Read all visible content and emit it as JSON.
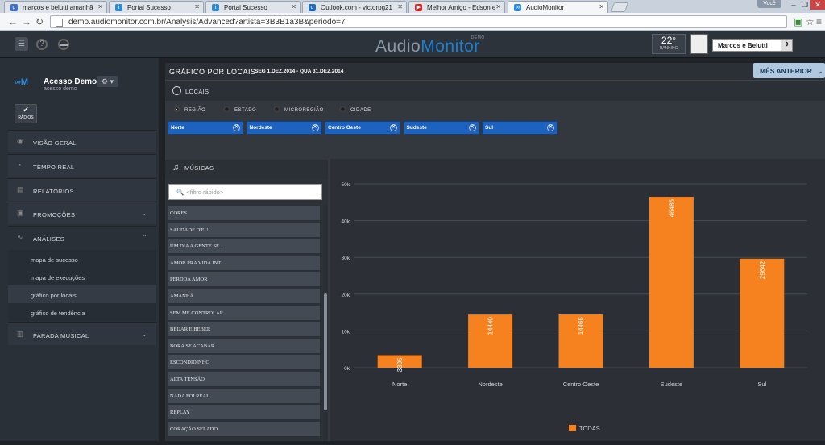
{
  "browser": {
    "tabs": [
      {
        "label": "marcos e belutti amanhã",
        "icon": "google-favicon",
        "color": "#3a6fd8",
        "glyph": "g"
      },
      {
        "label": "Portal Sucesso",
        "icon": "portal-favicon",
        "color": "#2f8bd0",
        "glyph": "i"
      },
      {
        "label": "Portal Sucesso",
        "icon": "portal-favicon",
        "color": "#2f8bd0",
        "glyph": "i"
      },
      {
        "label": "Outlook.com - victorpg21",
        "icon": "outlook-favicon",
        "color": "#1a6bc4",
        "glyph": "o"
      },
      {
        "label": "Melhor Amigo - Edson e",
        "icon": "youtube-favicon",
        "color": "#d22",
        "glyph": "▶"
      },
      {
        "label": "AudioMonitor",
        "icon": "audiomonitor-favicon",
        "color": "#2a8be0",
        "glyph": "∞"
      }
    ],
    "user_chip": "Você",
    "url": "demo.audiomonitor.com.br/Analysis/Advanced?artista=3B3B1a3B&periodo=7"
  },
  "header": {
    "logo_audio": "Audio",
    "logo_monitor": "Monitor",
    "logo_demo": "DEMO",
    "temperature": "22°",
    "ranking_label": "RANKING",
    "artist_name": "Marcos e Belutti"
  },
  "sidebar": {
    "user_title": "Acesso Demo",
    "user_sub": "acesso demo",
    "radios_label": "RÁDIOS",
    "menu": [
      {
        "label": "VISÃO GERAL",
        "icon": "eye-icon",
        "glyph": "◉"
      },
      {
        "label": "TEMPO REAL",
        "icon": "gauge-icon",
        "glyph": "◔"
      },
      {
        "label": "RELATÓRIOS",
        "icon": "report-icon",
        "glyph": "▤"
      },
      {
        "label": "PROMOÇÕES",
        "icon": "gift-icon",
        "glyph": "▣"
      },
      {
        "label": "ANÁLISES",
        "icon": "analysis-icon",
        "glyph": "∿"
      }
    ],
    "submenu": [
      "mapa de sucesso",
      "mapa de execuções",
      "gráfico por locais",
      "gráfico de tendência"
    ],
    "bottom_menu": {
      "label": "PARADA MUSICAL",
      "icon": "chart-bars-icon",
      "glyph": "▥"
    }
  },
  "main": {
    "title": "GRÁFICO POR LOCAIS",
    "dates": "SEG 1.DEZ.2014 - QUA 31.DEZ.2014",
    "prev_button": "MÊS ANTERIOR",
    "locais_title": "LOCAIS",
    "radio_options": [
      "REGIÃO",
      "ESTADO",
      "MICROREGIÃO",
      "CIDADE"
    ],
    "chips": [
      "Norte",
      "Nordeste",
      "Centro Oeste",
      "Sudeste",
      "Sul"
    ],
    "musicas_title": "MÚSICAS",
    "filter_placeholder": "<filtro rápido>",
    "songs": [
      "CORES",
      "SAUDADE D'EU",
      "UM DIA A GENTE SE...",
      "AMOR PRA VIDA INT...",
      "PERDOA AMOR",
      "AMANHÃ",
      "SEM ME CONTROLAR",
      "BEIJAR E BEBER",
      "BORA SE ACABAR",
      "ESCONDIDINHO",
      "ALTA TENSÃO",
      "NADA FOI REAL",
      "REPLAY",
      "CORAÇÃO SELADO"
    ]
  },
  "chart_data": {
    "type": "bar",
    "categories": [
      "Norte",
      "Nordeste",
      "Centro Oeste",
      "Sudeste",
      "Sul"
    ],
    "series": [
      {
        "name": "TODAS",
        "values": [
          3395,
          14440,
          14465,
          46486,
          29642
        ],
        "color": "#f5821f"
      }
    ],
    "yticks": [
      "0k",
      "10k",
      "20k",
      "30k",
      "40k",
      "50k"
    ],
    "ylim": [
      0,
      50000
    ],
    "grid": true,
    "legend": "bottom-center"
  }
}
